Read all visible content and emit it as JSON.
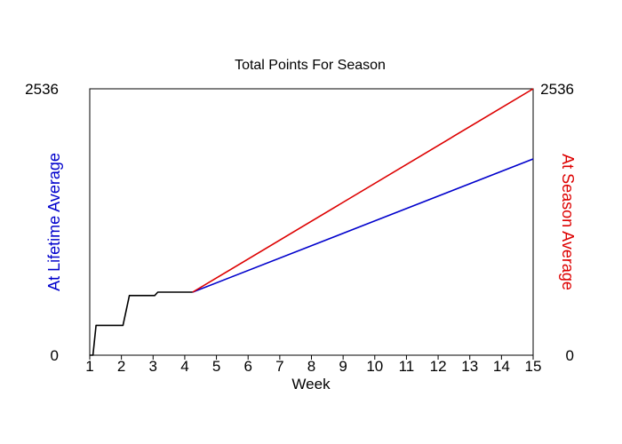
{
  "chart_data": {
    "type": "line",
    "title": "Total Points For Season",
    "xlabel": "Week",
    "ylabel_left": "At Lifetime Average",
    "ylabel_right": "At Season Average",
    "xlim": [
      1,
      15
    ],
    "ylim": [
      0,
      2536
    ],
    "x_ticks": [
      1,
      2,
      3,
      4,
      5,
      6,
      7,
      8,
      9,
      10,
      11,
      12,
      13,
      14,
      15
    ],
    "y_ticks_left": [
      "0",
      "2536"
    ],
    "y_ticks_right": [
      "0",
      "2536"
    ],
    "grid": false,
    "colors": {
      "actual": "#000000",
      "lifetime": "#0000cc",
      "season": "#dd0000",
      "left_label": "#0000cc",
      "right_label": "#dd0000"
    },
    "series": [
      {
        "key": "actual",
        "x": [
          1.0,
          1.1,
          1.2,
          2.05,
          2.25,
          3.05,
          3.15,
          4.25
        ],
        "y": [
          0,
          0,
          284,
          284,
          568,
          568,
          600,
          600
        ]
      },
      {
        "key": "lifetime",
        "x": [
          4.25,
          15
        ],
        "y": [
          600,
          1868
        ]
      },
      {
        "key": "season",
        "x": [
          4.25,
          15
        ],
        "y": [
          600,
          2536
        ]
      }
    ]
  }
}
